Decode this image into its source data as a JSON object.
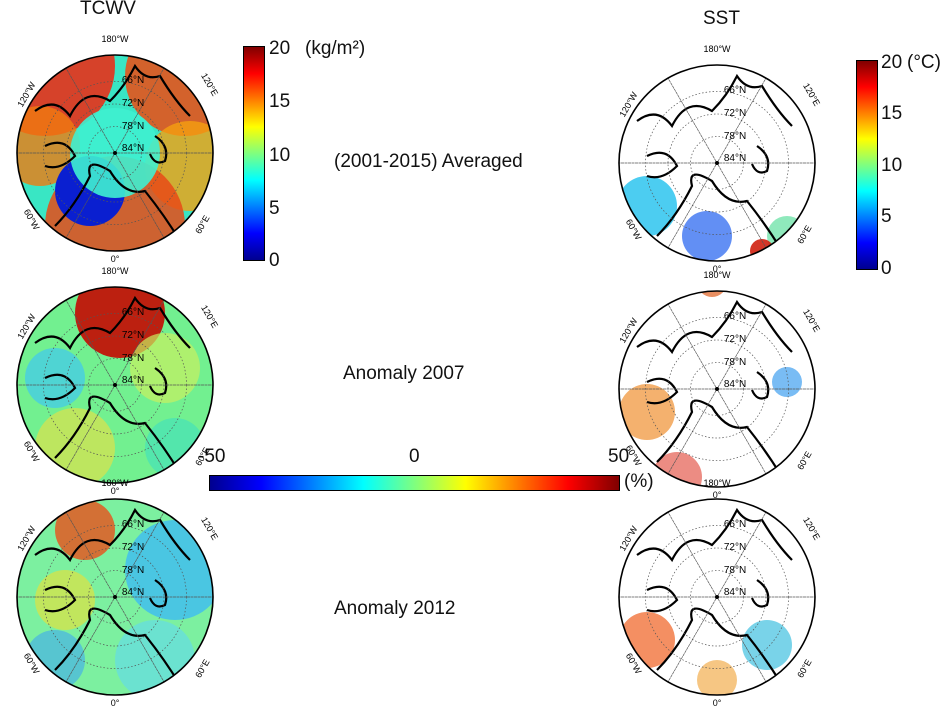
{
  "columns": {
    "left": "TCWV",
    "right": "SST"
  },
  "rows": [
    {
      "label": "(2001-2015) Averaged"
    },
    {
      "label": "Anomaly  2007"
    },
    {
      "label": "Anomaly  2012"
    }
  ],
  "map_labels": {
    "top": "180°W",
    "bottom": "0°",
    "left_top": "120°W",
    "left_bottom": "60°W",
    "right_top": "120°E",
    "right_bottom": "60°E",
    "lat1": "66°N",
    "lat2": "72°N",
    "lat3": "78°N",
    "lat4": "84°N"
  },
  "colorbars": {
    "tcwv": {
      "ticks": [
        "20",
        "15",
        "10",
        "5",
        "0"
      ],
      "unit": "(kg/m²)",
      "range": [
        0,
        20
      ]
    },
    "sst": {
      "ticks": [
        "20",
        "15",
        "10",
        "5",
        "0"
      ],
      "unit": "(°C)",
      "range": [
        0,
        20
      ]
    },
    "anomaly": {
      "ticks": [
        "-50",
        "0",
        "50"
      ],
      "unit": "(%)",
      "range": [
        -50,
        50
      ]
    }
  },
  "colors": {
    "jet": [
      "#00008f",
      "#0000ff",
      "#007fff",
      "#00ffff",
      "#7fff7f",
      "#ffff00",
      "#ff7f00",
      "#ff0000",
      "#800000"
    ],
    "land_outline": "#000000",
    "grid": "#555555"
  }
}
